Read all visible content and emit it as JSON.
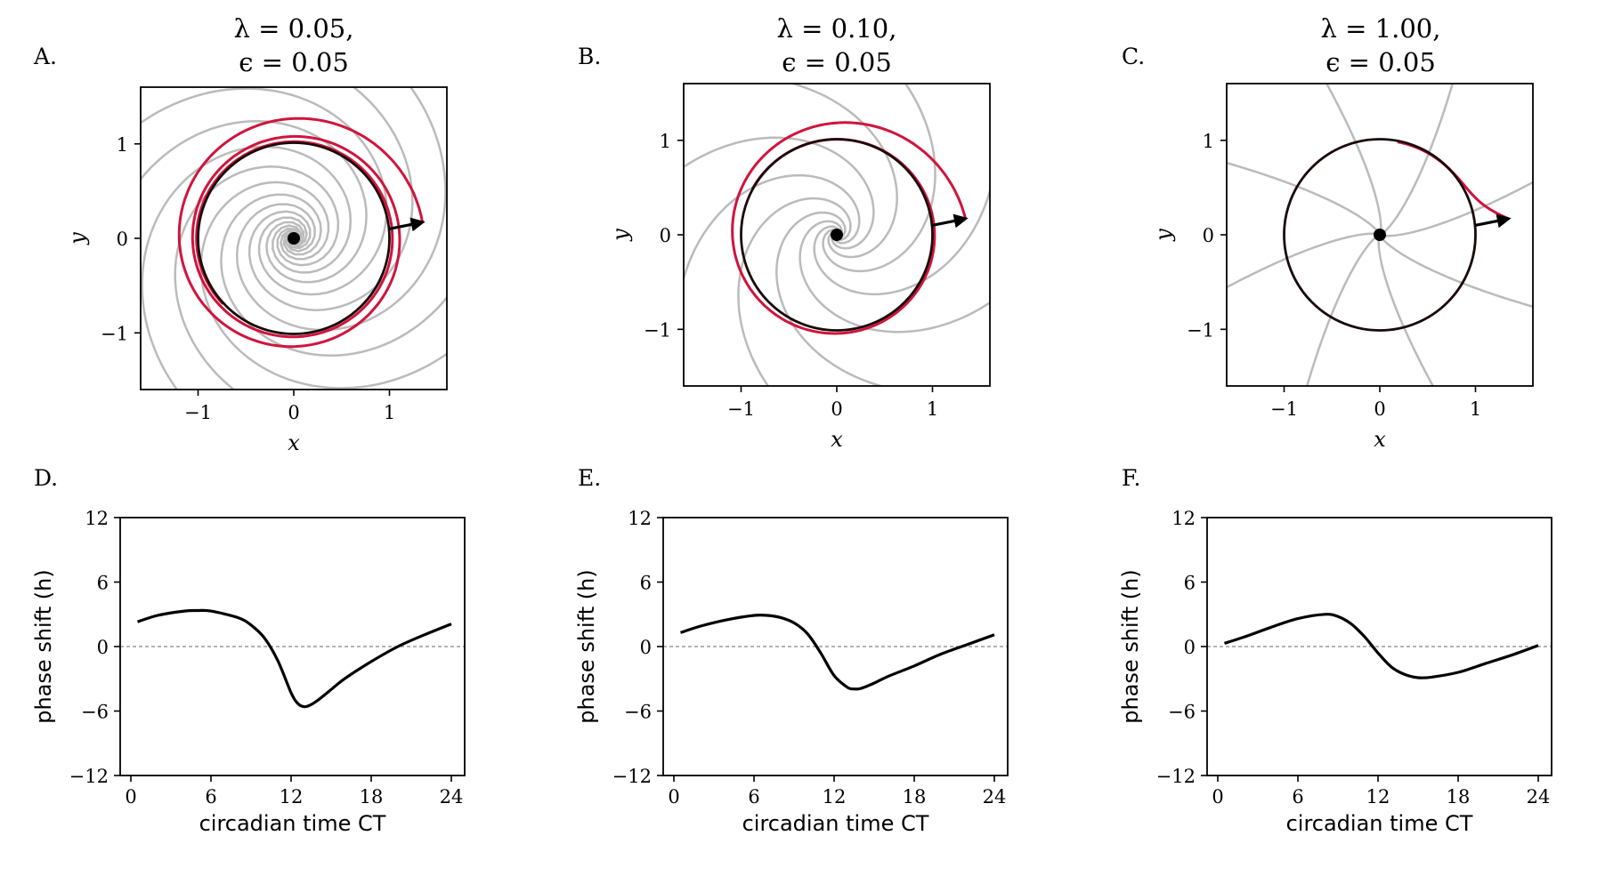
{
  "colors": {
    "trajectory": "#d0143c",
    "limit_cycle": "#1a0a0a",
    "isochron": "#bbbbbb",
    "prc_line": "#000000",
    "zero_line": "#888888"
  },
  "chart_data": [
    {
      "panel": "A.",
      "type": "phase_portrait",
      "title": [
        "λ = 0.05,",
        "ϵ = 0.05"
      ],
      "params": {
        "lambda": 0.05,
        "epsilon": 0.05
      },
      "xlabel": "x",
      "ylabel": "y",
      "xlim": [
        -1.6,
        1.6
      ],
      "ylim": [
        -1.6,
        1.6
      ],
      "xticks": [
        -1,
        0,
        1
      ],
      "yticks": [
        -1,
        0,
        1
      ],
      "xticklabels": [
        "−1",
        "0",
        "1"
      ],
      "yticklabels": [
        "−1",
        "0",
        "1"
      ],
      "fixed_point": [
        0,
        0
      ],
      "perturbation_arrow": {
        "from": [
          0.995,
          0.1
        ],
        "to": [
          1.345,
          0.17
        ]
      },
      "isochron_count": 8
    },
    {
      "panel": "B.",
      "type": "phase_portrait",
      "title": [
        "λ = 0.10,",
        "ϵ = 0.05"
      ],
      "params": {
        "lambda": 0.1,
        "epsilon": 0.05
      },
      "xlabel": "x",
      "ylabel": "y",
      "xlim": [
        -1.6,
        1.6
      ],
      "ylim": [
        -1.6,
        1.6
      ],
      "xticks": [
        -1,
        0,
        1
      ],
      "yticks": [
        -1,
        0,
        1
      ],
      "xticklabels": [
        "−1",
        "0",
        "1"
      ],
      "yticklabels": [
        "−1",
        "0",
        "1"
      ],
      "fixed_point": [
        0,
        0
      ],
      "perturbation_arrow": {
        "from": [
          0.995,
          0.1
        ],
        "to": [
          1.345,
          0.17
        ]
      },
      "isochron_count": 8
    },
    {
      "panel": "C.",
      "type": "phase_portrait",
      "title": [
        "λ = 1.00,",
        "ϵ = 0.05"
      ],
      "params": {
        "lambda": 1.0,
        "epsilon": 0.05
      },
      "xlabel": "x",
      "ylabel": "y",
      "xlim": [
        -1.6,
        1.6
      ],
      "ylim": [
        -1.6,
        1.6
      ],
      "xticks": [
        -1,
        0,
        1
      ],
      "yticks": [
        -1,
        0,
        1
      ],
      "xticklabels": [
        "−1",
        "0",
        "1"
      ],
      "yticklabels": [
        "−1",
        "0",
        "1"
      ],
      "fixed_point": [
        0,
        0
      ],
      "perturbation_arrow": {
        "from": [
          0.995,
          0.1
        ],
        "to": [
          1.345,
          0.17
        ]
      },
      "isochron_count": 8
    },
    {
      "panel": "D.",
      "type": "line",
      "xlabel": "circadian time CT",
      "ylabel": "phase shift (h)",
      "xlim": [
        -0.8,
        25
      ],
      "ylim": [
        -12,
        12
      ],
      "xticks": [
        0,
        6,
        12,
        18,
        24
      ],
      "yticks": [
        -12,
        -6,
        0,
        6,
        12
      ],
      "xticklabels": [
        "0",
        "6",
        "12",
        "18",
        "24"
      ],
      "yticklabels": [
        "−12",
        "−6",
        "0",
        "6",
        "12"
      ],
      "zero_line": true,
      "x": [
        0.5,
        2,
        4,
        5,
        6,
        8,
        9,
        10,
        11,
        12,
        12.5,
        13,
        13.5,
        14,
        15,
        16,
        18,
        20,
        22,
        24
      ],
      "y": [
        2.3,
        2.9,
        3.3,
        3.35,
        3.3,
        2.7,
        2.0,
        0.8,
        -1.3,
        -4.3,
        -5.3,
        -5.6,
        -5.4,
        -5.0,
        -4.0,
        -3.0,
        -1.4,
        0.0,
        1.1,
        2.1
      ]
    },
    {
      "panel": "E.",
      "type": "line",
      "xlabel": "circadian time CT",
      "ylabel": "phase shift (h)",
      "xlim": [
        -0.8,
        25
      ],
      "ylim": [
        -12,
        12
      ],
      "xticks": [
        0,
        6,
        12,
        18,
        24
      ],
      "yticks": [
        -12,
        -6,
        0,
        6,
        12
      ],
      "xticklabels": [
        "0",
        "6",
        "12",
        "18",
        "24"
      ],
      "yticklabels": [
        "−12",
        "−6",
        "0",
        "6",
        "12"
      ],
      "zero_line": true,
      "x": [
        0.5,
        2,
        4,
        6,
        7,
        8,
        9,
        10,
        11,
        12,
        13,
        13.5,
        14,
        15,
        16,
        18,
        20,
        22,
        24
      ],
      "y": [
        1.3,
        1.9,
        2.5,
        2.9,
        2.9,
        2.7,
        2.2,
        1.2,
        -0.6,
        -2.7,
        -3.8,
        -3.95,
        -3.9,
        -3.4,
        -2.8,
        -1.8,
        -0.7,
        0.2,
        1.1
      ]
    },
    {
      "panel": "F.",
      "type": "line",
      "xlabel": "circadian time CT",
      "ylabel": "phase shift (h)",
      "xlim": [
        -0.8,
        25
      ],
      "ylim": [
        -12,
        12
      ],
      "xticks": [
        0,
        6,
        12,
        18,
        24
      ],
      "yticks": [
        -12,
        -6,
        0,
        6,
        12
      ],
      "xticklabels": [
        "0",
        "6",
        "12",
        "18",
        "24"
      ],
      "yticklabels": [
        "−12",
        "−6",
        "0",
        "6",
        "12"
      ],
      "zero_line": true,
      "x": [
        0.5,
        2,
        4,
        6,
        8,
        9,
        10,
        11,
        12,
        13,
        14,
        15,
        16,
        18,
        20,
        22,
        24
      ],
      "y": [
        0.3,
        0.9,
        1.8,
        2.6,
        3.0,
        2.8,
        2.1,
        0.9,
        -0.6,
        -1.9,
        -2.6,
        -2.9,
        -2.85,
        -2.4,
        -1.6,
        -0.8,
        0.1
      ]
    }
  ]
}
